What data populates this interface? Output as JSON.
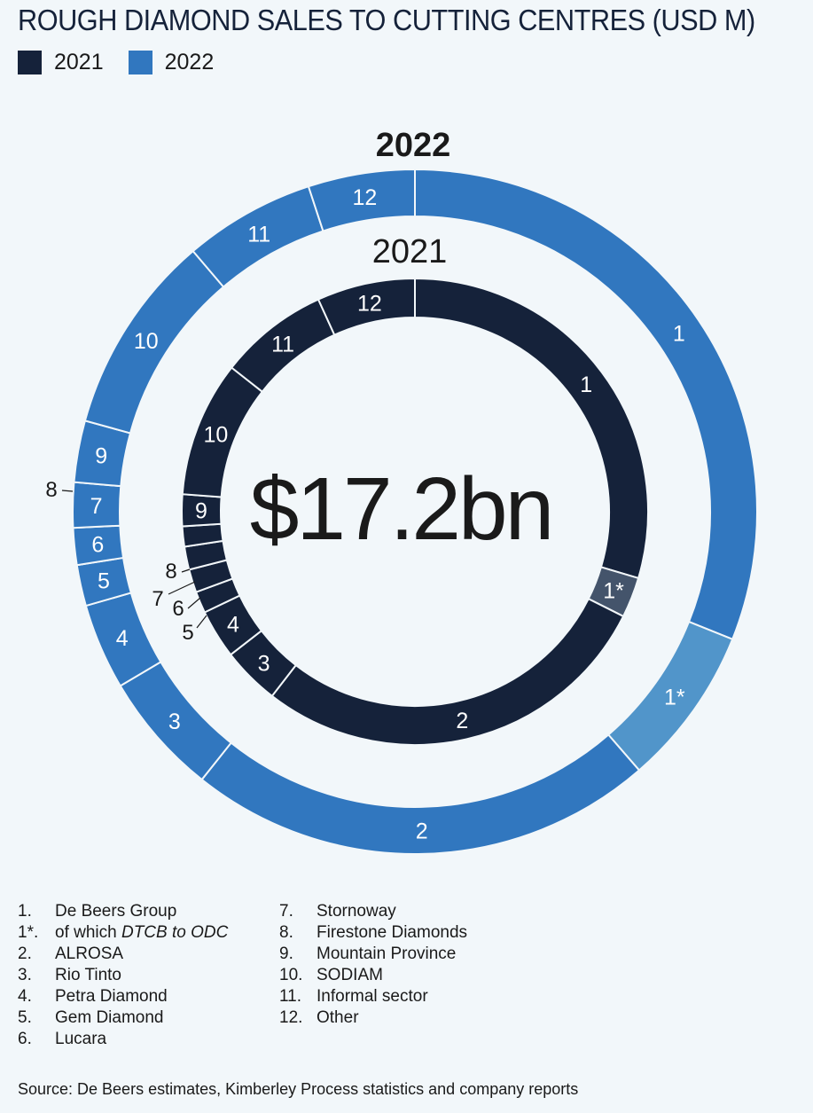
{
  "title": "ROUGH DIAMOND SALES TO CUTTING CENTRES (USD M)",
  "legend": [
    {
      "label": "2021",
      "color": "#15223a"
    },
    {
      "label": "2022",
      "color": "#3177bf"
    }
  ],
  "center_label": "$17.2bn",
  "key": {
    "left": [
      {
        "num": "1.",
        "text": "De Beers Group"
      },
      {
        "num": "1*.",
        "text_prefix": "of which ",
        "text_italic": "DTCB to ODC"
      },
      {
        "num": "2.",
        "text": "ALROSA"
      },
      {
        "num": "3.",
        "text": "Rio Tinto"
      },
      {
        "num": "4.",
        "text": "Petra Diamond"
      },
      {
        "num": "5.",
        "text": "Gem Diamond"
      },
      {
        "num": "6.",
        "text": "Lucara"
      }
    ],
    "right": [
      {
        "num": "7.",
        "text": "Stornoway"
      },
      {
        "num": "8.",
        "text": "Firestone Diamonds"
      },
      {
        "num": "9.",
        "text": "Mountain Province"
      },
      {
        "num": "10.",
        "text": "SODIAM"
      },
      {
        "num": "11.",
        "text": "Informal sector"
      },
      {
        "num": "12.",
        "text": "Other"
      }
    ]
  },
  "source": "Source: De Beers estimates, Kimberley Process statistics and company reports",
  "chart_data": {
    "type": "donut",
    "title": "ROUGH DIAMOND SALES TO CUTTING CENTRES (USD M)",
    "series": [
      {
        "name": "2022",
        "color": "#3177bf",
        "highlight_color": "#5195ca",
        "slices": [
          {
            "label": "1",
            "value": 32.1
          },
          {
            "label": "1*",
            "value": 7.8,
            "sub": true
          },
          {
            "label": "2",
            "value": 22.8
          },
          {
            "label": "3",
            "value": 6.0
          },
          {
            "label": "4",
            "value": 4.2
          },
          {
            "label": "5",
            "value": 2.0
          },
          {
            "label": "6",
            "value": 1.8
          },
          {
            "label": "7",
            "value": 2.2
          },
          {
            "label": "8",
            "value": 0.0
          },
          {
            "label": "9",
            "value": 3.0
          },
          {
            "label": "10",
            "value": 9.8
          },
          {
            "label": "11",
            "value": 6.4
          },
          {
            "label": "12",
            "value": 5.2
          }
        ]
      },
      {
        "name": "2021",
        "color": "#15223a",
        "highlight_color": "#44546b",
        "center_total": "$17.2bn",
        "slices": [
          {
            "label": "1",
            "value": 29.6
          },
          {
            "label": "1*",
            "value": 2.8,
            "sub": true
          },
          {
            "label": "2",
            "value": 28.1
          },
          {
            "label": "3",
            "value": 4.0
          },
          {
            "label": "4",
            "value": 3.4
          },
          {
            "label": "5",
            "value": 1.5
          },
          {
            "label": "6",
            "value": 1.6
          },
          {
            "label": "7",
            "value": 1.6
          },
          {
            "label": "8",
            "value": 1.4
          },
          {
            "label": "9",
            "value": 2.2
          },
          {
            "label": "10",
            "value": 9.4
          },
          {
            "label": "11",
            "value": 7.6
          },
          {
            "label": "12",
            "value": 6.8
          }
        ]
      }
    ],
    "callouts": [
      {
        "ring": "2022",
        "label": "8"
      },
      {
        "ring": "2021",
        "label": "8"
      },
      {
        "ring": "2021",
        "label": "7"
      },
      {
        "ring": "2021",
        "label": "6"
      },
      {
        "ring": "2021",
        "label": "5"
      }
    ]
  }
}
